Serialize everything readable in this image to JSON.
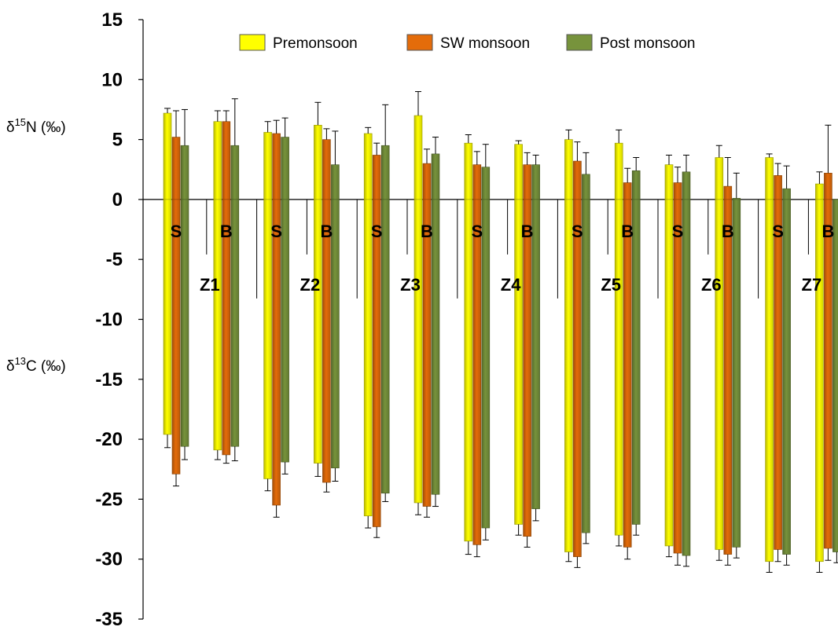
{
  "chart_data": {
    "type": "bar",
    "ylim": [
      -35,
      15
    ],
    "yticks": [
      15,
      10,
      5,
      0,
      -5,
      -10,
      -15,
      -20,
      -25,
      -30,
      -35
    ],
    "axis_titles": [
      {
        "base": "δ",
        "sup": "15",
        "rest": "N (‰)"
      },
      {
        "base": "δ",
        "sup": "13",
        "rest": "C (‰)"
      }
    ],
    "legend_position": "top",
    "grid": false,
    "series": [
      {
        "name": "Premonsoon",
        "color": "#ffff00"
      },
      {
        "name": "SW monsoon",
        "color": "#e46c0a"
      },
      {
        "name": "Post monsoon",
        "color": "#77933c"
      }
    ],
    "groups": [
      {
        "zone": "Z1",
        "site": "S",
        "n15": [
          7.2,
          5.2,
          4.5
        ],
        "n15_err": [
          0.4,
          2.2,
          3.0
        ],
        "c13": [
          -19.6,
          -22.9,
          -20.6
        ],
        "c13_err": [
          1.1,
          1.0,
          1.1
        ]
      },
      {
        "zone": "Z1",
        "site": "B",
        "n15": [
          6.5,
          6.5,
          4.5
        ],
        "n15_err": [
          0.9,
          0.9,
          3.9
        ],
        "c13": [
          -20.9,
          -21.3,
          -20.6
        ],
        "c13_err": [
          0.8,
          0.7,
          1.2
        ]
      },
      {
        "zone": "Z2",
        "site": "S",
        "n15": [
          5.6,
          5.5,
          5.2
        ],
        "n15_err": [
          0.9,
          1.1,
          1.6
        ],
        "c13": [
          -23.3,
          -25.5,
          -21.9
        ],
        "c13_err": [
          1.0,
          1.0,
          1.0
        ]
      },
      {
        "zone": "Z2",
        "site": "B",
        "n15": [
          6.2,
          5.0,
          2.9
        ],
        "n15_err": [
          1.9,
          0.9,
          2.8
        ],
        "c13": [
          -22.0,
          -23.6,
          -22.4
        ],
        "c13_err": [
          1.1,
          0.8,
          1.1
        ]
      },
      {
        "zone": "Z3",
        "site": "S",
        "n15": [
          5.5,
          3.7,
          4.5
        ],
        "n15_err": [
          0.5,
          1.0,
          3.4
        ],
        "c13": [
          -26.4,
          -27.3,
          -24.5
        ],
        "c13_err": [
          1.0,
          0.9,
          0.7
        ]
      },
      {
        "zone": "Z3",
        "site": "B",
        "n15": [
          7.0,
          3.0,
          3.8
        ],
        "n15_err": [
          2.0,
          1.2,
          1.4
        ],
        "c13": [
          -25.3,
          -25.6,
          -24.6
        ],
        "c13_err": [
          1.0,
          0.9,
          1.0
        ]
      },
      {
        "zone": "Z4",
        "site": "S",
        "n15": [
          4.7,
          2.9,
          2.7
        ],
        "n15_err": [
          0.7,
          1.1,
          1.9
        ],
        "c13": [
          -28.5,
          -28.8,
          -27.4
        ],
        "c13_err": [
          1.1,
          1.0,
          1.0
        ]
      },
      {
        "zone": "Z4",
        "site": "B",
        "n15": [
          4.6,
          2.9,
          2.9
        ],
        "n15_err": [
          0.3,
          1.0,
          0.8
        ],
        "c13": [
          -27.1,
          -28.1,
          -25.8
        ],
        "c13_err": [
          0.9,
          0.9,
          1.0
        ]
      },
      {
        "zone": "Z5",
        "site": "S",
        "n15": [
          5.0,
          3.2,
          2.1
        ],
        "n15_err": [
          0.8,
          1.6,
          1.8
        ],
        "c13": [
          -29.4,
          -29.8,
          -27.8
        ],
        "c13_err": [
          0.8,
          0.9,
          0.9
        ]
      },
      {
        "zone": "Z5",
        "site": "B",
        "n15": [
          4.7,
          1.4,
          2.4
        ],
        "n15_err": [
          1.1,
          1.2,
          1.1
        ],
        "c13": [
          -28.0,
          -29.0,
          -27.1
        ],
        "c13_err": [
          0.9,
          1.0,
          0.9
        ]
      },
      {
        "zone": "Z6",
        "site": "S",
        "n15": [
          2.9,
          1.4,
          2.3
        ],
        "n15_err": [
          0.8,
          1.3,
          1.4
        ],
        "c13": [
          -28.9,
          -29.5,
          -29.7
        ],
        "c13_err": [
          0.9,
          1.0,
          0.9
        ]
      },
      {
        "zone": "Z6",
        "site": "B",
        "n15": [
          3.5,
          1.1,
          0.1
        ],
        "n15_err": [
          1.0,
          2.4,
          2.1
        ],
        "c13": [
          -29.2,
          -29.6,
          -29.0
        ],
        "c13_err": [
          0.9,
          0.9,
          0.9
        ]
      },
      {
        "zone": "Z7",
        "site": "S",
        "n15": [
          3.5,
          2.0,
          0.9
        ],
        "n15_err": [
          0.3,
          1.0,
          1.9
        ],
        "c13": [
          -30.2,
          -29.2,
          -29.6
        ],
        "c13_err": [
          0.9,
          1.0,
          0.9
        ]
      },
      {
        "zone": "Z7",
        "site": "B",
        "n15": [
          1.3,
          2.2,
          null
        ],
        "n15_err": [
          1.0,
          4.0,
          null
        ],
        "c13": [
          -30.2,
          -29.1,
          -29.4
        ],
        "c13_err": [
          0.9,
          1.0,
          0.9
        ]
      }
    ]
  }
}
